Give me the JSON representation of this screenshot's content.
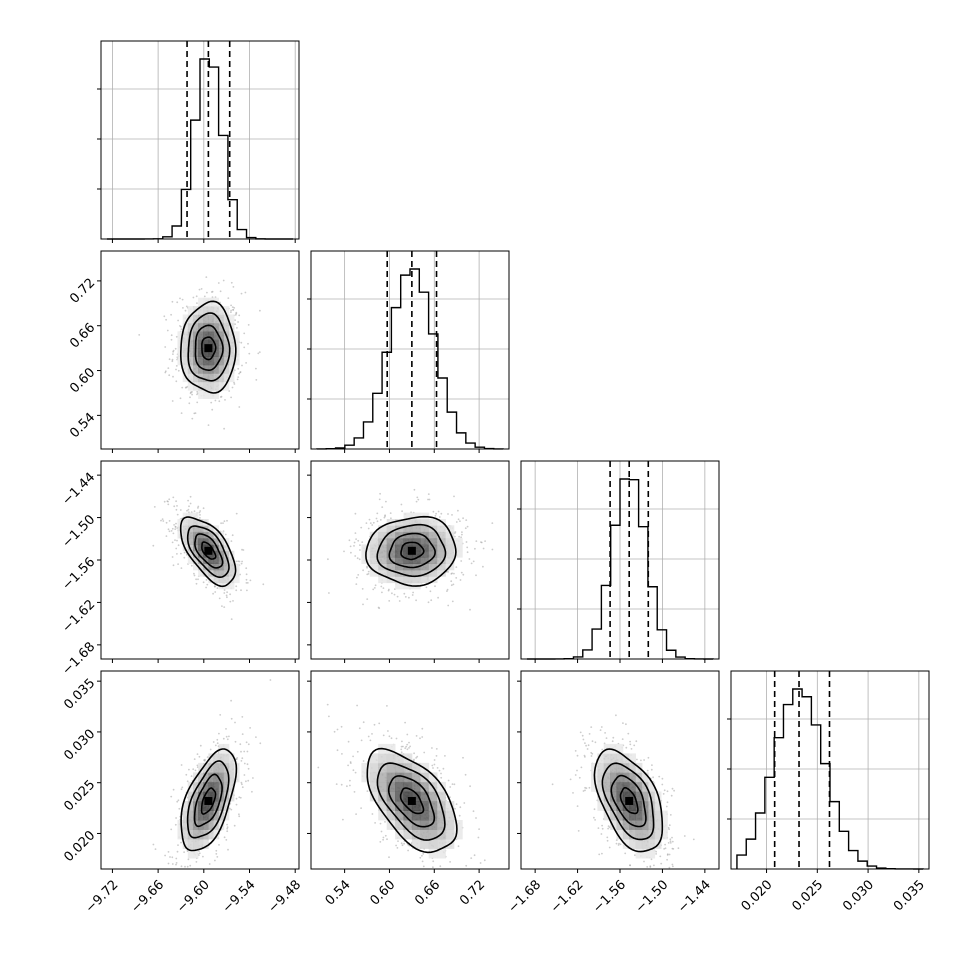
{
  "chart_data": {
    "type": "corner",
    "title": "",
    "parameters": [
      {
        "range": [
          -9.735,
          -9.475
        ],
        "ticks": [
          -9.72,
          -9.66,
          -9.6,
          -9.54,
          -9.48
        ],
        "tick_labels": [
          "−9.72",
          "−9.66",
          "−9.60",
          "−9.54",
          "−9.48"
        ],
        "mean": -9.594,
        "sd": 0.018,
        "quantiles": [
          -9.622,
          -9.594,
          -9.566
        ]
      },
      {
        "range": [
          0.495,
          0.76
        ],
        "ticks": [
          0.54,
          0.6,
          0.66,
          0.72
        ],
        "tick_labels": [
          "0.54",
          "0.60",
          "0.66",
          "0.72"
        ],
        "mean": 0.63,
        "sd": 0.03,
        "quantiles": [
          0.597,
          0.63,
          0.663
        ]
      },
      {
        "range": [
          -1.7,
          -1.42
        ],
        "ticks": [
          -1.68,
          -1.62,
          -1.56,
          -1.5,
          -1.44
        ],
        "tick_labels": [
          "−1.68",
          "−1.62",
          "−1.56",
          "−1.50",
          "−1.44"
        ],
        "mean": -1.547,
        "sd": 0.024,
        "quantiles": [
          -1.574,
          -1.547,
          -1.52
        ]
      },
      {
        "range": [
          0.0165,
          0.036
        ],
        "ticks": [
          0.02,
          0.025,
          0.03,
          0.035
        ],
        "tick_labels": [
          "0.020",
          "0.025",
          "0.030",
          "0.035"
        ],
        "mean": 0.0232,
        "sd": 0.0025,
        "quantiles": [
          0.0208,
          0.0232,
          0.0262
        ]
      }
    ],
    "correlations": [
      [
        1.0,
        0.0,
        -0.6,
        0.55
      ],
      [
        0.0,
        1.0,
        0.05,
        -0.55
      ],
      [
        -0.6,
        0.05,
        1.0,
        -0.5
      ],
      [
        0.55,
        -0.55,
        -0.5,
        1.0
      ]
    ],
    "contour_levels_sigma": [
      0.5,
      1.0,
      1.5,
      2.0
    ],
    "histogram": {
      "bins": 20,
      "style": "step"
    },
    "grid": true,
    "legend": "none"
  }
}
